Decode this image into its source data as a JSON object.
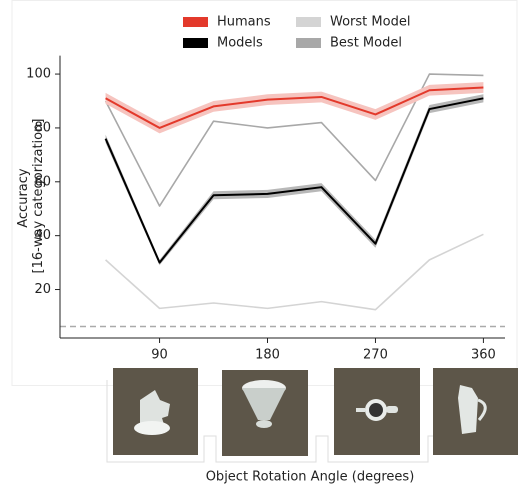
{
  "chart_data": {
    "type": "line",
    "ylabel": [
      "Accuracy",
      "[16-way categorization]"
    ],
    "xlabel": "Object Rotation Angle (degrees)",
    "x": [
      45,
      90,
      135,
      180,
      225,
      270,
      315,
      360
    ],
    "xlim": [
      7,
      378
    ],
    "xticks": [
      90,
      180,
      270,
      360
    ],
    "ylim": [
      2,
      105
    ],
    "yticks": [
      20,
      40,
      60,
      80,
      100
    ],
    "reference_line": 6.25,
    "series": [
      {
        "name": "Worst Model",
        "color": "#d4d4d4",
        "values": [
          31,
          13,
          15,
          13,
          15.5,
          12.5,
          31,
          40.5
        ]
      },
      {
        "name": "Best Model",
        "color": "#a8a8a8",
        "values": [
          90,
          51,
          82.5,
          80,
          82,
          60.5,
          100,
          99.5
        ]
      },
      {
        "name": "Models",
        "color": "#000000",
        "band_color": "#b8b8b8",
        "values": [
          76,
          30,
          55,
          55.5,
          58,
          37,
          87,
          91
        ],
        "lower": [
          74.5,
          29,
          53.5,
          54,
          56.5,
          35.5,
          85.5,
          89.5
        ],
        "upper": [
          77.5,
          31,
          56.5,
          57,
          59.5,
          38.5,
          88.5,
          92.5
        ]
      },
      {
        "name": "Humans",
        "color": "#e3392b",
        "band_color": "#f6c4bf",
        "values": [
          91,
          80,
          88,
          90.5,
          91.5,
          85,
          94,
          95
        ],
        "lower": [
          89,
          78,
          86,
          88.5,
          89.5,
          83,
          92,
          93
        ],
        "upper": [
          93,
          82,
          90,
          92.5,
          93.5,
          87,
          96,
          97
        ]
      }
    ]
  }
}
